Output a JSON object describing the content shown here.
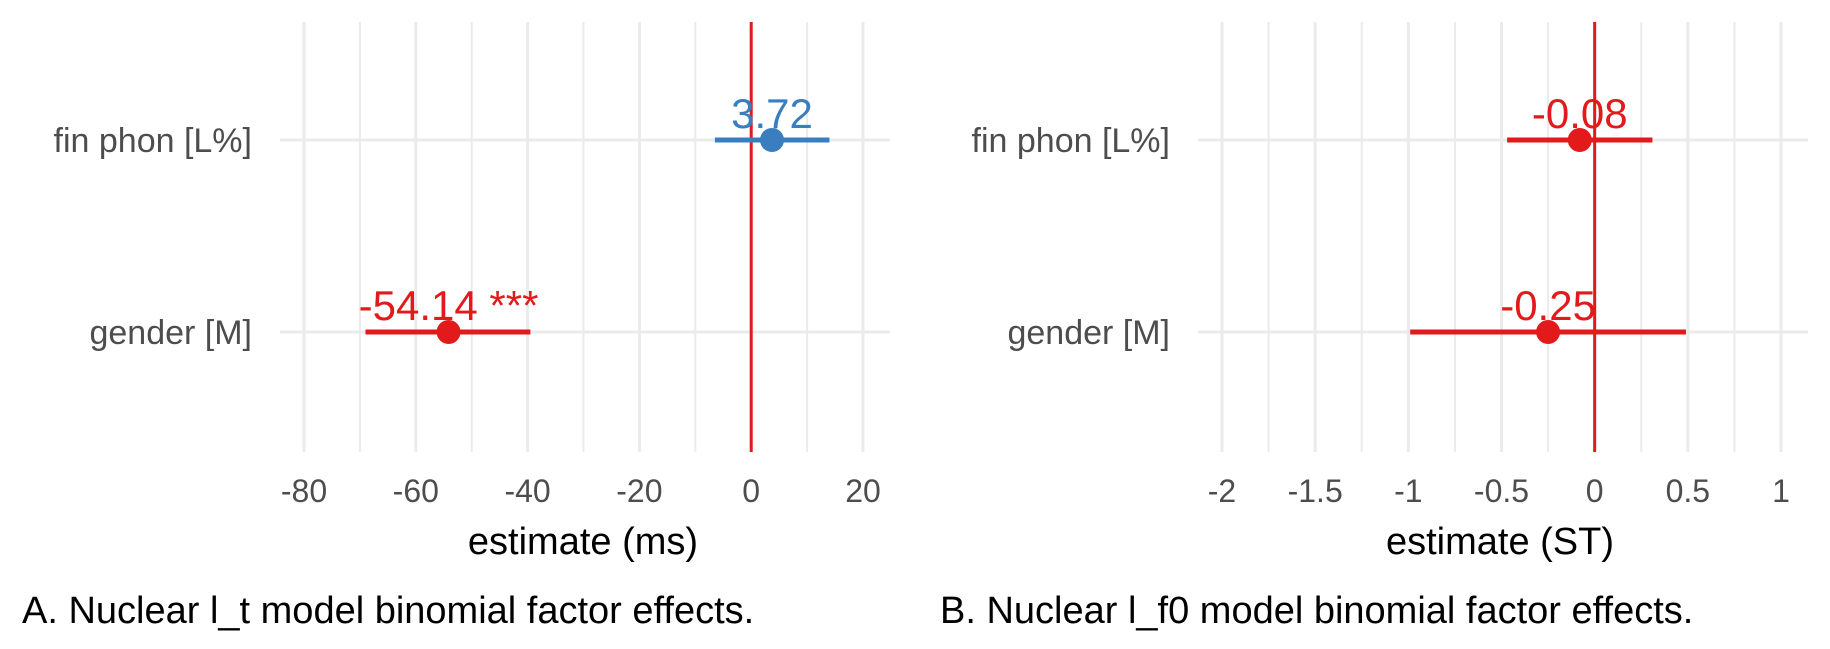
{
  "colors": {
    "positive": "#3a7ebf",
    "negative": "#e31a1c",
    "zero_line": "#e31a1c",
    "grid": "#ebebeb",
    "axis_text": "#4d4d4d"
  },
  "chart_data": [
    {
      "type": "scatter",
      "subtype": "coefficient-plot",
      "caption": "A. Nuclear l_t model binomial factor effects.",
      "xlabel": "estimate (ms)",
      "xlim": [
        -80,
        20
      ],
      "xticks": [
        "-80",
        "-60",
        "-40",
        "-20",
        "0",
        "20"
      ],
      "xtick_values": [
        -80,
        -60,
        -40,
        -20,
        0,
        20
      ],
      "grid": true,
      "points": [
        {
          "term": "fin phon [L%]",
          "estimate": 3.72,
          "ci": [
            -6.5,
            14.0
          ],
          "label": "3.72",
          "color": "#3a7ebf"
        },
        {
          "term": "gender [M]",
          "estimate": -54.14,
          "ci": [
            -69.0,
            -39.5
          ],
          "label": "-54.14 ***",
          "color": "#e31a1c"
        }
      ]
    },
    {
      "type": "scatter",
      "subtype": "coefficient-plot",
      "caption": "B. Nuclear l_f0 model binomial factor effects.",
      "xlabel": "estimate (ST)",
      "xlim": [
        -2,
        1
      ],
      "xticks": [
        "-2",
        "-1.5",
        "-1",
        "-0.5",
        "0",
        "0.5",
        "1"
      ],
      "xtick_values": [
        -2,
        -1.5,
        -1,
        -0.5,
        0,
        0.5,
        1
      ],
      "grid": true,
      "points": [
        {
          "term": "fin phon [L%]",
          "estimate": -0.08,
          "ci": [
            -0.47,
            0.31
          ],
          "label": "-0.08",
          "color": "#e31a1c"
        },
        {
          "term": "gender [M]",
          "estimate": -0.25,
          "ci": [
            -0.99,
            0.49
          ],
          "label": "-0.25",
          "color": "#e31a1c"
        }
      ]
    }
  ]
}
